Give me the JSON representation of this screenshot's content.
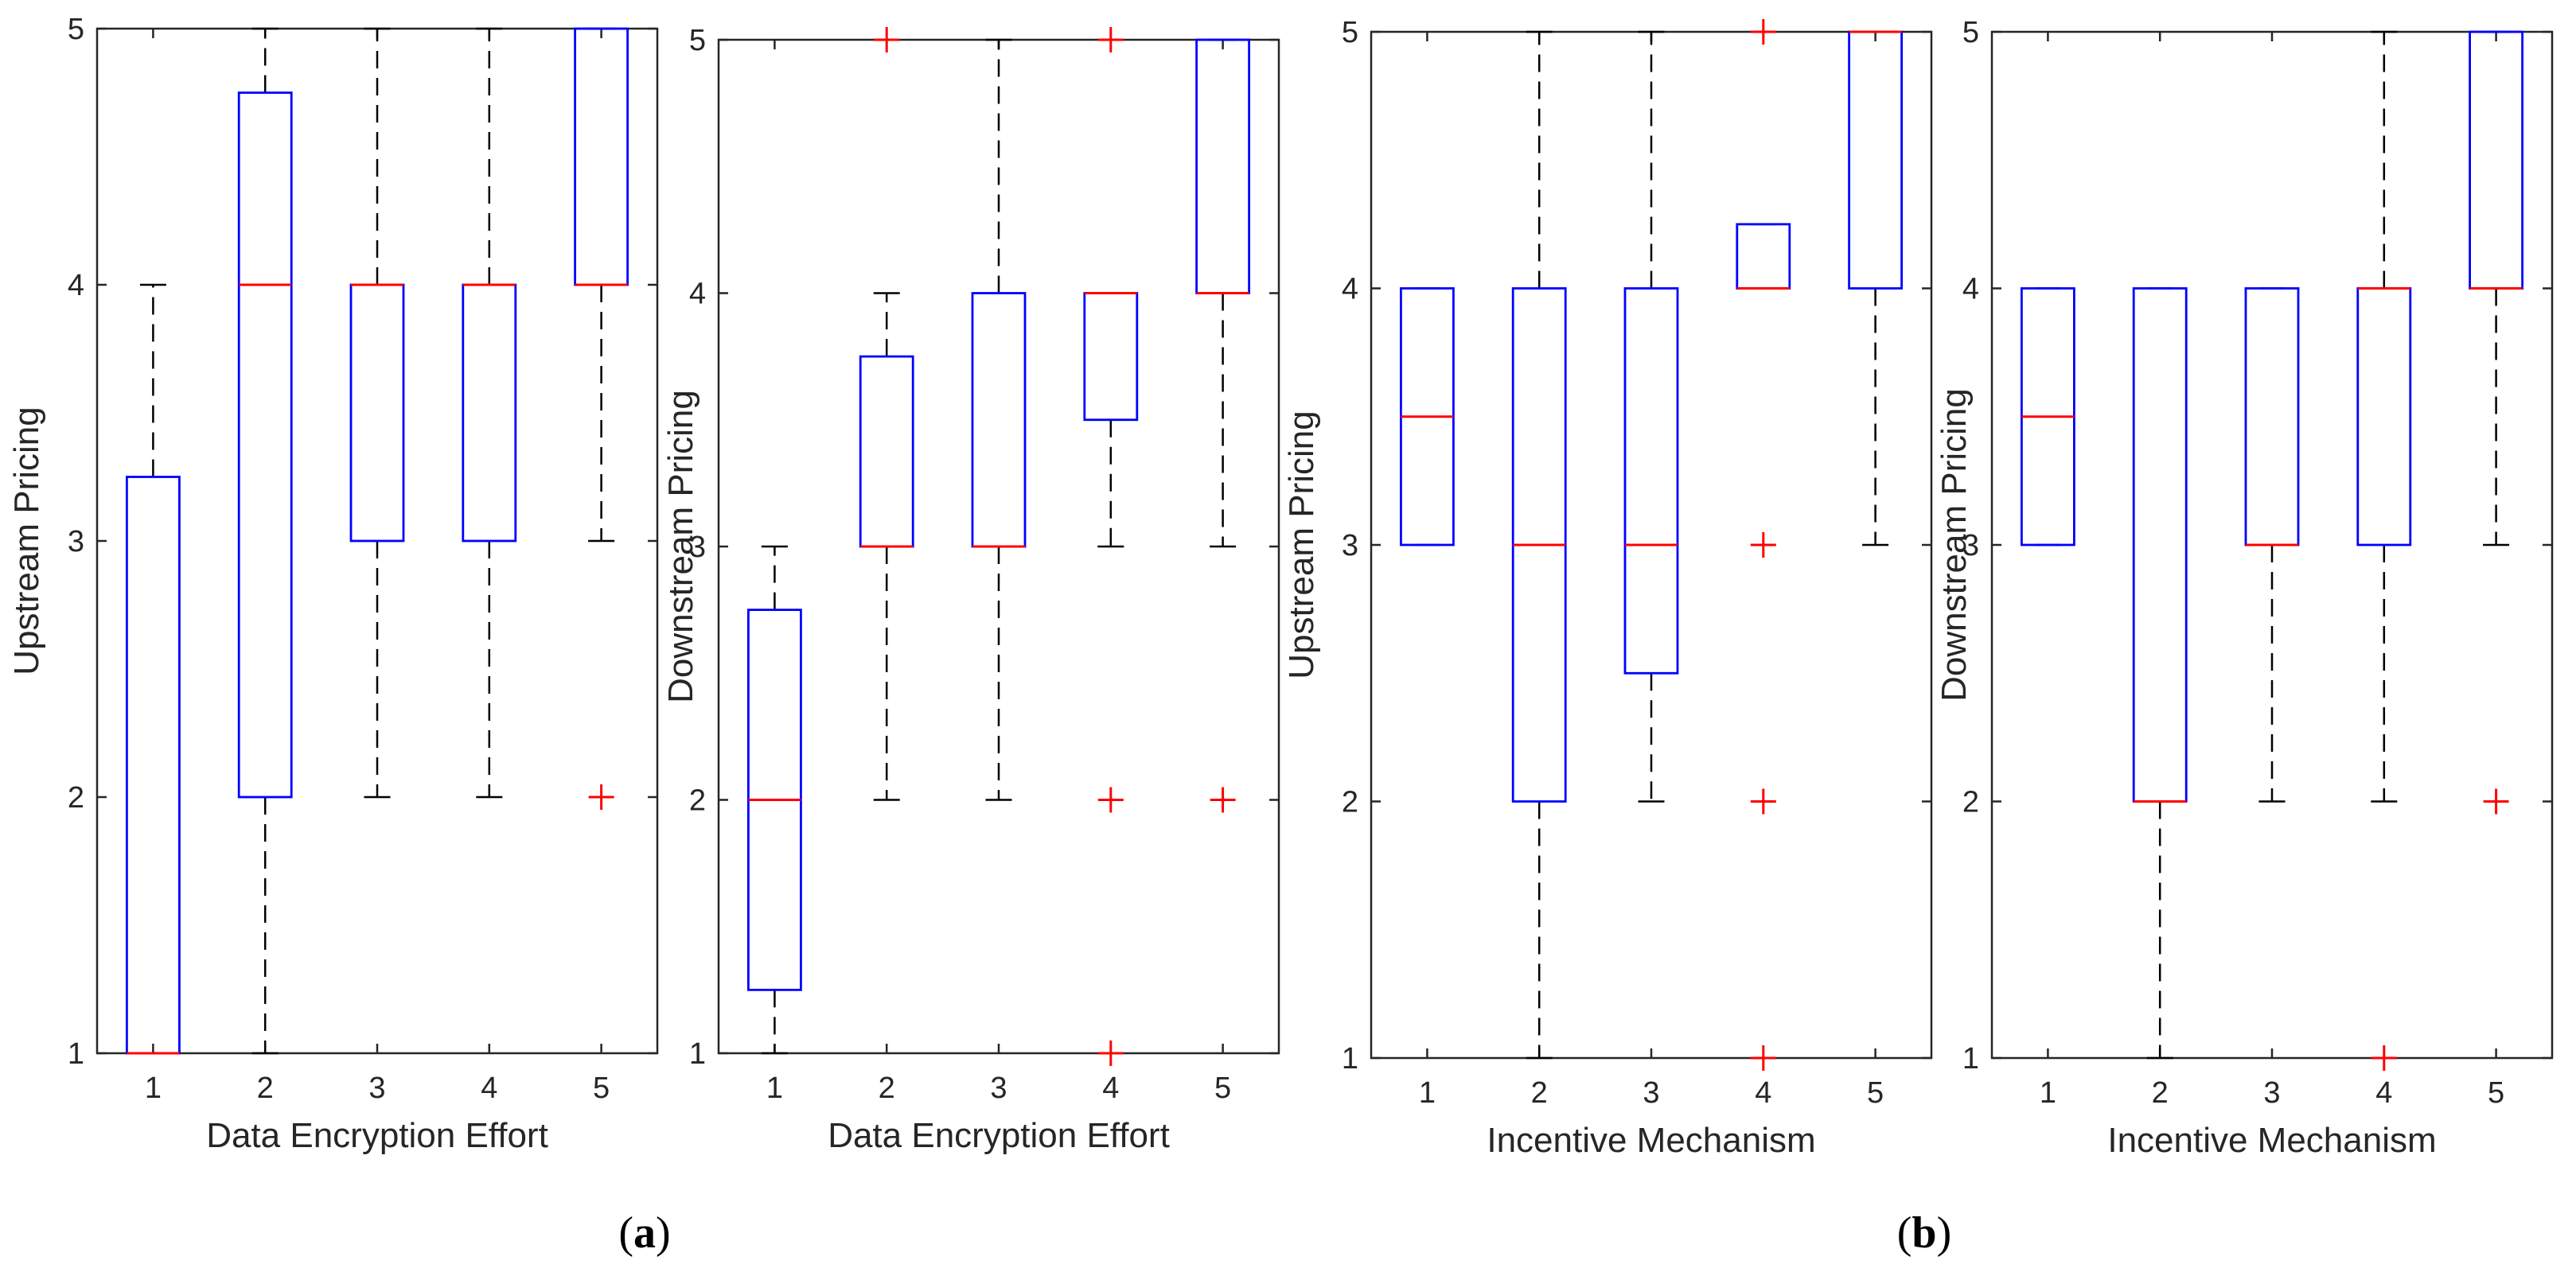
{
  "chart_data": [
    {
      "type": "boxplot",
      "panel": "a-left",
      "xlabel": "Data Encryption Effort",
      "ylabel": "Upstream Pricing",
      "ylim": [
        1,
        5
      ],
      "xticks": [
        "1",
        "2",
        "3",
        "4",
        "5"
      ],
      "yticks": [
        "1",
        "2",
        "3",
        "4",
        "5"
      ],
      "boxes": [
        {
          "category": "1",
          "q1": 1,
          "median": 1,
          "q3": 3.25,
          "whisker_low": 1,
          "whisker_high": 4,
          "outliers": []
        },
        {
          "category": "2",
          "q1": 2,
          "median": 4,
          "q3": 4.75,
          "whisker_low": 1,
          "whisker_high": 5,
          "outliers": []
        },
        {
          "category": "3",
          "q1": 3,
          "median": 4,
          "q3": 4,
          "whisker_low": 2,
          "whisker_high": 5,
          "outliers": []
        },
        {
          "category": "4",
          "q1": 3,
          "median": 4,
          "q3": 4,
          "whisker_low": 2,
          "whisker_high": 5,
          "outliers": []
        },
        {
          "category": "5",
          "q1": 4,
          "median": 4,
          "q3": 5,
          "whisker_low": 3,
          "whisker_high": 5,
          "outliers": [
            2
          ]
        }
      ]
    },
    {
      "type": "boxplot",
      "panel": "a-right",
      "xlabel": "Data Encryption Effort",
      "ylabel": "Downstream Pricing",
      "ylim": [
        1,
        5
      ],
      "xticks": [
        "1",
        "2",
        "3",
        "4",
        "5"
      ],
      "yticks": [
        "1",
        "2",
        "3",
        "4",
        "5"
      ],
      "boxes": [
        {
          "category": "1",
          "q1": 1.25,
          "median": 2,
          "q3": 2.75,
          "whisker_low": 1,
          "whisker_high": 3,
          "outliers": []
        },
        {
          "category": "2",
          "q1": 3,
          "median": 3,
          "q3": 3.75,
          "whisker_low": 2,
          "whisker_high": 4,
          "outliers": [
            5
          ]
        },
        {
          "category": "3",
          "q1": 3,
          "median": 3,
          "q3": 4,
          "whisker_low": 2,
          "whisker_high": 5,
          "outliers": []
        },
        {
          "category": "4",
          "q1": 3.5,
          "median": 4,
          "q3": 4,
          "whisker_low": 3,
          "whisker_high": 4,
          "outliers": [
            5,
            2,
            1
          ]
        },
        {
          "category": "5",
          "q1": 4,
          "median": 4,
          "q3": 5,
          "whisker_low": 3,
          "whisker_high": 5,
          "outliers": [
            2
          ]
        }
      ]
    },
    {
      "type": "boxplot",
      "panel": "b-left",
      "xlabel": "Incentive Mechanism",
      "ylabel": "Upstream Pricing",
      "ylim": [
        1,
        5
      ],
      "xticks": [
        "1",
        "2",
        "3",
        "4",
        "5"
      ],
      "yticks": [
        "1",
        "2",
        "3",
        "4",
        "5"
      ],
      "boxes": [
        {
          "category": "1",
          "q1": 3,
          "median": 3.5,
          "q3": 4,
          "whisker_low": 3,
          "whisker_high": 4,
          "outliers": []
        },
        {
          "category": "2",
          "q1": 2,
          "median": 3,
          "q3": 4,
          "whisker_low": 1,
          "whisker_high": 5,
          "outliers": []
        },
        {
          "category": "3",
          "q1": 2.5,
          "median": 3,
          "q3": 4,
          "whisker_low": 2,
          "whisker_high": 5,
          "outliers": []
        },
        {
          "category": "4",
          "q1": 4,
          "median": 4,
          "q3": 4.25,
          "whisker_low": 4,
          "whisker_high": 4.25,
          "outliers": [
            5,
            3,
            2,
            1
          ]
        },
        {
          "category": "5",
          "q1": 4,
          "median": 5,
          "q3": 5,
          "whisker_low": 3,
          "whisker_high": 5,
          "outliers": []
        }
      ]
    },
    {
      "type": "boxplot",
      "panel": "b-right",
      "xlabel": "Incentive Mechanism",
      "ylabel": "Downstream Pricing",
      "ylim": [
        1,
        5
      ],
      "xticks": [
        "1",
        "2",
        "3",
        "4",
        "5"
      ],
      "yticks": [
        "1",
        "2",
        "3",
        "4",
        "5"
      ],
      "boxes": [
        {
          "category": "1",
          "q1": 3,
          "median": 3.5,
          "q3": 4,
          "whisker_low": 3,
          "whisker_high": 4,
          "outliers": []
        },
        {
          "category": "2",
          "q1": 2,
          "median": 2,
          "q3": 4,
          "whisker_low": 1,
          "whisker_high": 4,
          "outliers": []
        },
        {
          "category": "3",
          "q1": 3,
          "median": 3,
          "q3": 4,
          "whisker_low": 2,
          "whisker_high": 4,
          "outliers": []
        },
        {
          "category": "4",
          "q1": 3,
          "median": 4,
          "q3": 4,
          "whisker_low": 2,
          "whisker_high": 5,
          "outliers": [
            1
          ]
        },
        {
          "category": "5",
          "q1": 4,
          "median": 4,
          "q3": 5,
          "whisker_low": 3,
          "whisker_high": 5,
          "outliers": [
            2
          ]
        }
      ]
    }
  ],
  "panel_labels": [
    {
      "bold": "a",
      "open": "(",
      "close": ")"
    },
    {
      "bold": "b",
      "open": "(",
      "close": ")"
    }
  ],
  "colors": {
    "box": "#0000ff",
    "median": "#ff0000",
    "outlier": "#ff0000",
    "whisker": "#000000",
    "axis": "#262626"
  }
}
